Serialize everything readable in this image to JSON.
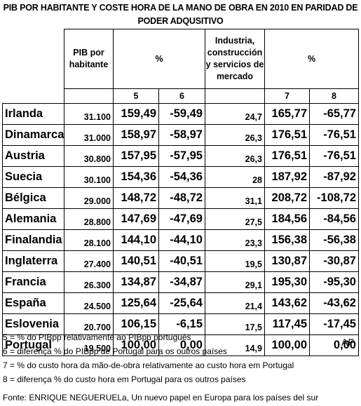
{
  "title_line1": "PIB POR HABITANTE Y COSTE HORA DE LA MANO DE OBRA EN 2010 EN PARIDAD DE",
  "title_line2": "PODER ADQUSITIVO",
  "headers": {
    "pib": "PIB por habitante",
    "pct1": "%",
    "industria": "Industria, construcción y servicios de mercado",
    "pct2": "%",
    "col5": "5",
    "col6": "6",
    "col7": "7",
    "col8": "8"
  },
  "rows": [
    {
      "country": "Irlanda",
      "pib": "31.100",
      "c5": "159,49",
      "c6": "-59,49",
      "ind": "24,7",
      "c7": "165,77",
      "c8": "-65,77"
    },
    {
      "country": "Dinamarca",
      "pib": "31.000",
      "c5": "158,97",
      "c6": "-58,97",
      "ind": "26,3",
      "c7": "176,51",
      "c8": "-76,51"
    },
    {
      "country": "Austria",
      "pib": "30.800",
      "c5": "157,95",
      "c6": "-57,95",
      "ind": "26,3",
      "c7": "176,51",
      "c8": "-76,51"
    },
    {
      "country": "Suecia",
      "pib": "30.100",
      "c5": "154,36",
      "c6": "-54,36",
      "ind": "28",
      "c7": "187,92",
      "c8": "-87,92"
    },
    {
      "country": "Bélgica",
      "pib": "29.000",
      "c5": "148,72",
      "c6": "-48,72",
      "ind": "31,1",
      "c7": "208,72",
      "c8": "-108,72"
    },
    {
      "country": "Alemania",
      "pib": "28.800",
      "c5": "147,69",
      "c6": "-47,69",
      "ind": "27,5",
      "c7": "184,56",
      "c8": "-84,56"
    },
    {
      "country": "Finalandia",
      "pib": "28.100",
      "c5": "144,10",
      "c6": "-44,10",
      "ind": "23,3",
      "c7": "156,38",
      "c8": "-56,38"
    },
    {
      "country": "Inglaterra",
      "pib": "27.400",
      "c5": "140,51",
      "c6": "-40,51",
      "ind": "19,5",
      "c7": "130,87",
      "c8": "-30,87"
    },
    {
      "country": "Francia",
      "pib": "26.300",
      "c5": "134,87",
      "c6": "-34,87",
      "ind": "29,1",
      "c7": "195,30",
      "c8": "-95,30"
    },
    {
      "country": "España",
      "pib": "24.500",
      "c5": "125,64",
      "c6": "-25,64",
      "ind": "21,4",
      "c7": "143,62",
      "c8": "-43,62"
    },
    {
      "country": "Eslovenia",
      "pib": "20.700",
      "c5": "106,15",
      "c6": "-6,15",
      "ind": "17,5",
      "c7": "117,45",
      "c8": "-17,45"
    },
    {
      "country": "Portugal",
      "pib": "19.500",
      "c5": "100,00",
      "c6": "0,00",
      "ind": "14,9",
      "c7": "100,00",
      "c8": "0,00"
    }
  ],
  "notes": [
    "5 = % do PIBpp relativamente ao PIBpp português",
    "6 = diferença % do PIBpp de Portugal para os outros países",
    "7 = % do custo hora da mão-de-obra relativamente ao custo hora em Portugal",
    "8 = diferença % do custo hora em Portugal para os outros países"
  ],
  "signature": "AF",
  "source": "Fonte: ENRIQUE NEGUERUELa, Un nuevo papel en Europa para los países del sur"
}
